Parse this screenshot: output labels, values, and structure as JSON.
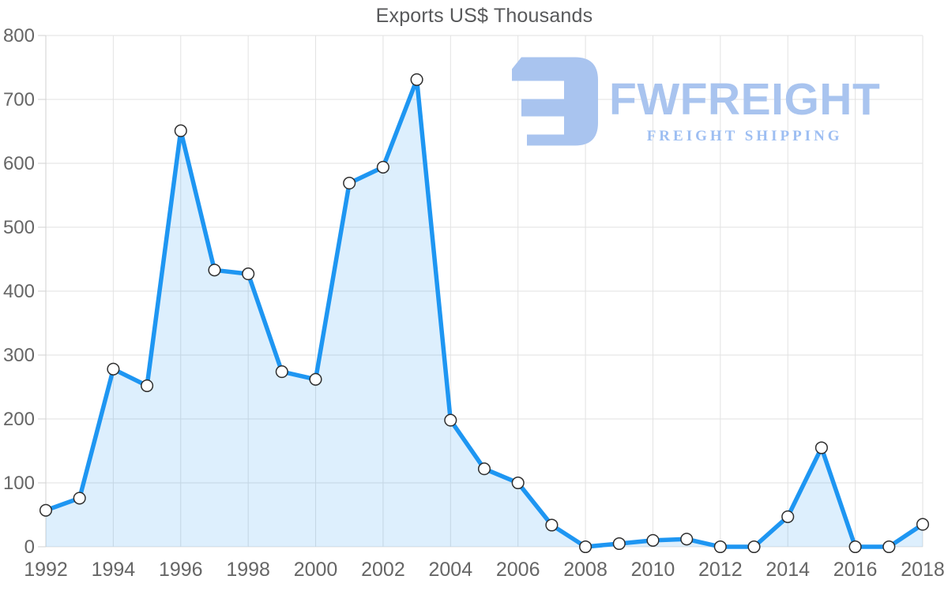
{
  "chart_data": {
    "type": "area",
    "title": "Exports US$ Thousands",
    "series_name": "Exports",
    "x": [
      1992,
      1993,
      1994,
      1995,
      1996,
      1997,
      1998,
      1999,
      2000,
      2001,
      2002,
      2003,
      2004,
      2005,
      2006,
      2007,
      2008,
      2009,
      2010,
      2011,
      2012,
      2013,
      2014,
      2015,
      2016,
      2017,
      2018
    ],
    "values": [
      57,
      76,
      278,
      252,
      651,
      433,
      427,
      274,
      262,
      569,
      594,
      731,
      198,
      122,
      100,
      34,
      0,
      5,
      10,
      12,
      0,
      0,
      47,
      155,
      0,
      0,
      35
    ],
    "xlabel": "",
    "ylabel": "",
    "xlim": [
      1992,
      2018
    ],
    "ylim": [
      0,
      800
    ],
    "x_tick_labels": [
      "1992",
      "1994",
      "1996",
      "1998",
      "2000",
      "2002",
      "2004",
      "2006",
      "2008",
      "2010",
      "2012",
      "2014",
      "2016",
      "2018"
    ],
    "x_tick_years": [
      1992,
      1994,
      1996,
      1998,
      2000,
      2002,
      2004,
      2006,
      2008,
      2010,
      2012,
      2014,
      2016,
      2018
    ],
    "y_ticks": [
      0,
      100,
      200,
      300,
      400,
      500,
      600,
      700,
      800
    ],
    "grid": true,
    "legend_position": "none",
    "colors": {
      "line": "#1e96f2",
      "area_fill": "rgba(30, 150, 242, 0.15)",
      "marker_fill": "#ffffff",
      "marker_stroke": "#2e2e2e",
      "grid": "#e2e2e2",
      "axis_line": "#d2d2d2",
      "tick_label": "#666666",
      "title": "#58595b"
    }
  },
  "logo": {
    "wordmark": "FWFREIGHT",
    "tagline": "FREIGHT SHIPPING",
    "icon": "fwfreight-reversed-e-mark",
    "wordmark_color": "#a9c4ef",
    "tagline_color": "#9dbef2",
    "icon_color": "#a9c4ef"
  }
}
